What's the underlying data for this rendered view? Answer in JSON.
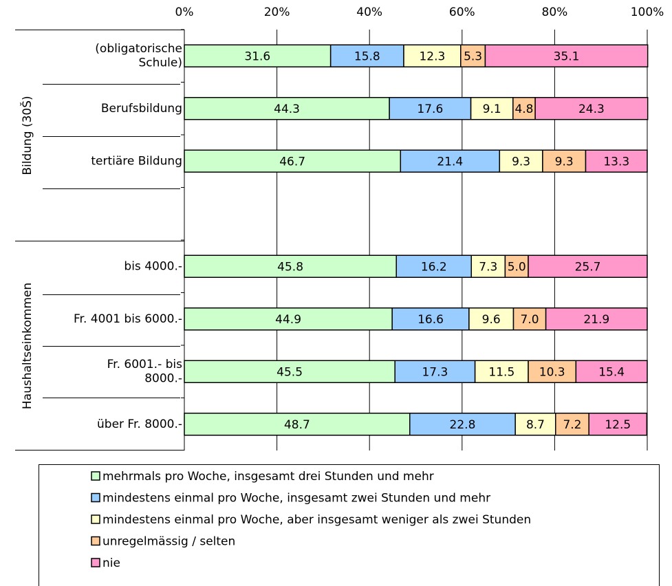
{
  "chart_data": {
    "type": "stacked-bar-horizontal",
    "categories": [
      "(obligatorische\nSchule)",
      "Berufsbildung",
      "tertiäre Bildung",
      null,
      "bis 4000.-",
      "Fr. 4001 bis 6000.-",
      "Fr. 6001.- bis\n8000.-",
      "über Fr. 8000.-"
    ],
    "groups": [
      "Bildung (30Š)",
      "Haushaltseinkommen"
    ],
    "series": [
      {
        "name": "mehrmals pro Woche, insgesamt drei Stunden und mehr",
        "color": "#ccffcc",
        "values": [
          31.6,
          44.3,
          46.7,
          null,
          45.8,
          44.9,
          45.5,
          48.7
        ]
      },
      {
        "name": "mindestens einmal pro Woche, insgesamt zwei Stunden und mehr",
        "color": "#99ccff",
        "values": [
          15.8,
          17.6,
          21.4,
          null,
          16.2,
          16.6,
          17.3,
          22.8
        ]
      },
      {
        "name": "mindestens einmal pro Woche, aber insgesamt weniger als zwei Stunden",
        "color": "#ffffcc",
        "values": [
          12.3,
          9.1,
          9.3,
          null,
          7.3,
          9.6,
          11.5,
          8.7
        ]
      },
      {
        "name": "unregelmässig / selten",
        "color": "#ffcc99",
        "values": [
          5.3,
          4.8,
          9.3,
          null,
          5.0,
          7.0,
          10.3,
          7.2
        ],
        "value_labels": [
          "5.3",
          "4.8",
          "9.3",
          null,
          "5.0",
          "7.0",
          "10.3",
          "7.2"
        ]
      },
      {
        "name": "nie",
        "color": "#ff99cc",
        "values": [
          35.1,
          24.3,
          13.3,
          null,
          25.7,
          21.9,
          15.4,
          12.5
        ]
      }
    ],
    "xlim": [
      0,
      100
    ],
    "xticks": [
      {
        "value": 0,
        "label": "0%"
      },
      {
        "value": 20,
        "label": "20%"
      },
      {
        "value": 40,
        "label": "40%"
      },
      {
        "value": 60,
        "label": "60%"
      },
      {
        "value": 80,
        "label": "80%"
      },
      {
        "value": 100,
        "label": "100%"
      }
    ],
    "grid": true
  }
}
